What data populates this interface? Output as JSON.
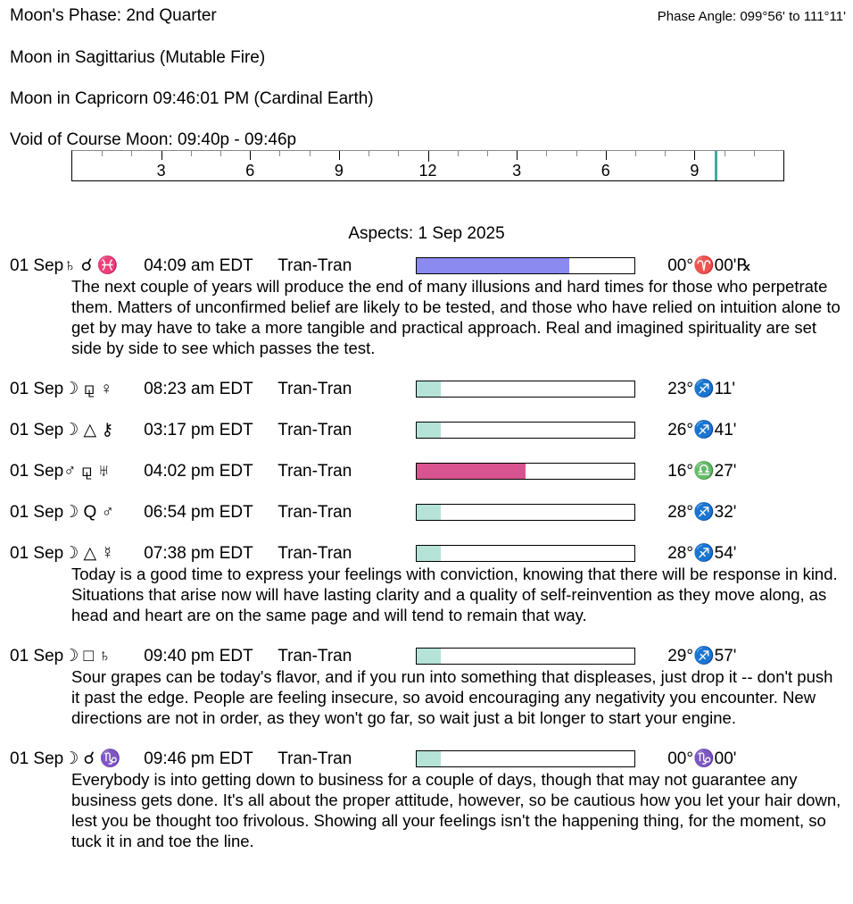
{
  "header": {
    "moon_phase": "Moon's Phase:  2nd Quarter",
    "phase_angle": "Phase Angle:  099°56' to 111°11'",
    "moon_sign": "Moon in Sagittarius   (Mutable Fire)",
    "moon_ingress": "Moon in Capricorn 09:46:01 PM  (Cardinal Earth)",
    "void_of_course": "Void of Course Moon:  09:40p -  09:46p"
  },
  "timeline": {
    "labels": [
      "3",
      "6",
      "9",
      "12",
      "3",
      "6",
      "9"
    ],
    "hours_span": 24,
    "void_marker_hour": 21.7,
    "marker_color": "#45a8a0"
  },
  "aspects_title": "Aspects: 1 Sep 2025",
  "aspects": [
    {
      "date": "01 Sep",
      "glyphs": "♄ ☌ ♓",
      "time": "04:09 am EDT",
      "kind": "Tran-Tran",
      "strength": 0.7,
      "color": "#8a8af0",
      "position": "00°♈00'℞",
      "desc": "The next couple of years will produce the end of many illusions and hard times for those who perpetrate them. Matters of unconfirmed belief are likely to be tested, and those who have relied on intuition alone to get by may have to take a more tangible and practical approach. Real and imagined spirituality are set side by side to see which passes the test."
    },
    {
      "date": "01 Sep",
      "glyphs": "☽ ⚼ ♀",
      "time": "08:23 am EDT",
      "kind": "Tran-Tran",
      "strength": 0.11,
      "color": "#b5e3d8",
      "position": "23°♐11'",
      "desc": ""
    },
    {
      "date": "01 Sep",
      "glyphs": "☽ △ ⚷",
      "time": "03:17 pm EDT",
      "kind": "Tran-Tran",
      "strength": 0.11,
      "color": "#b5e3d8",
      "position": "26°♐41'",
      "desc": ""
    },
    {
      "date": "01 Sep",
      "glyphs": "♂ ⚼ ♅",
      "time": "04:02 pm EDT",
      "kind": "Tran-Tran",
      "strength": 0.5,
      "color": "#d85490",
      "position": "16°♎27'",
      "desc": ""
    },
    {
      "date": "01 Sep",
      "glyphs": "☽ Q ♂",
      "time": "06:54 pm EDT",
      "kind": "Tran-Tran",
      "strength": 0.11,
      "color": "#b5e3d8",
      "position": "28°♐32'",
      "desc": ""
    },
    {
      "date": "01 Sep",
      "glyphs": "☽ △ ☿",
      "time": "07:38 pm EDT",
      "kind": "Tran-Tran",
      "strength": 0.11,
      "color": "#b5e3d8",
      "position": "28°♐54'",
      "desc": "Today is a good time to express your feelings with conviction, knowing that there will be response in kind. Situations that arise now will have lasting clarity and a quality of self-reinvention as they move along, as head and heart are on the same page and will tend to remain that way."
    },
    {
      "date": "01 Sep",
      "glyphs": "☽ □ ♄",
      "time": "09:40 pm EDT",
      "kind": "Tran-Tran",
      "strength": 0.11,
      "color": "#b5e3d8",
      "position": "29°♐57'",
      "desc": "Sour grapes can be today's flavor, and if you run into something that displeases, just drop it -- don't push it past the edge. People are feeling insecure, so avoid encouraging any negativity you encounter. New directions are not in order, as they won't go far, so wait just a bit longer to start your engine."
    },
    {
      "date": "01 Sep",
      "glyphs": "☽ ☌ ♑",
      "time": "09:46 pm EDT",
      "kind": "Tran-Tran",
      "strength": 0.11,
      "color": "#b5e3d8",
      "position": "00°♑00'",
      "desc": "Everybody is into getting down to business for a couple of days, though that may not guarantee any business gets done. It's all about the proper attitude, however, so be cautious how you let your hair down, lest you be thought too frivolous. Showing all your feelings isn't the happening thing, for the moment, so tuck it in and toe the line."
    }
  ]
}
